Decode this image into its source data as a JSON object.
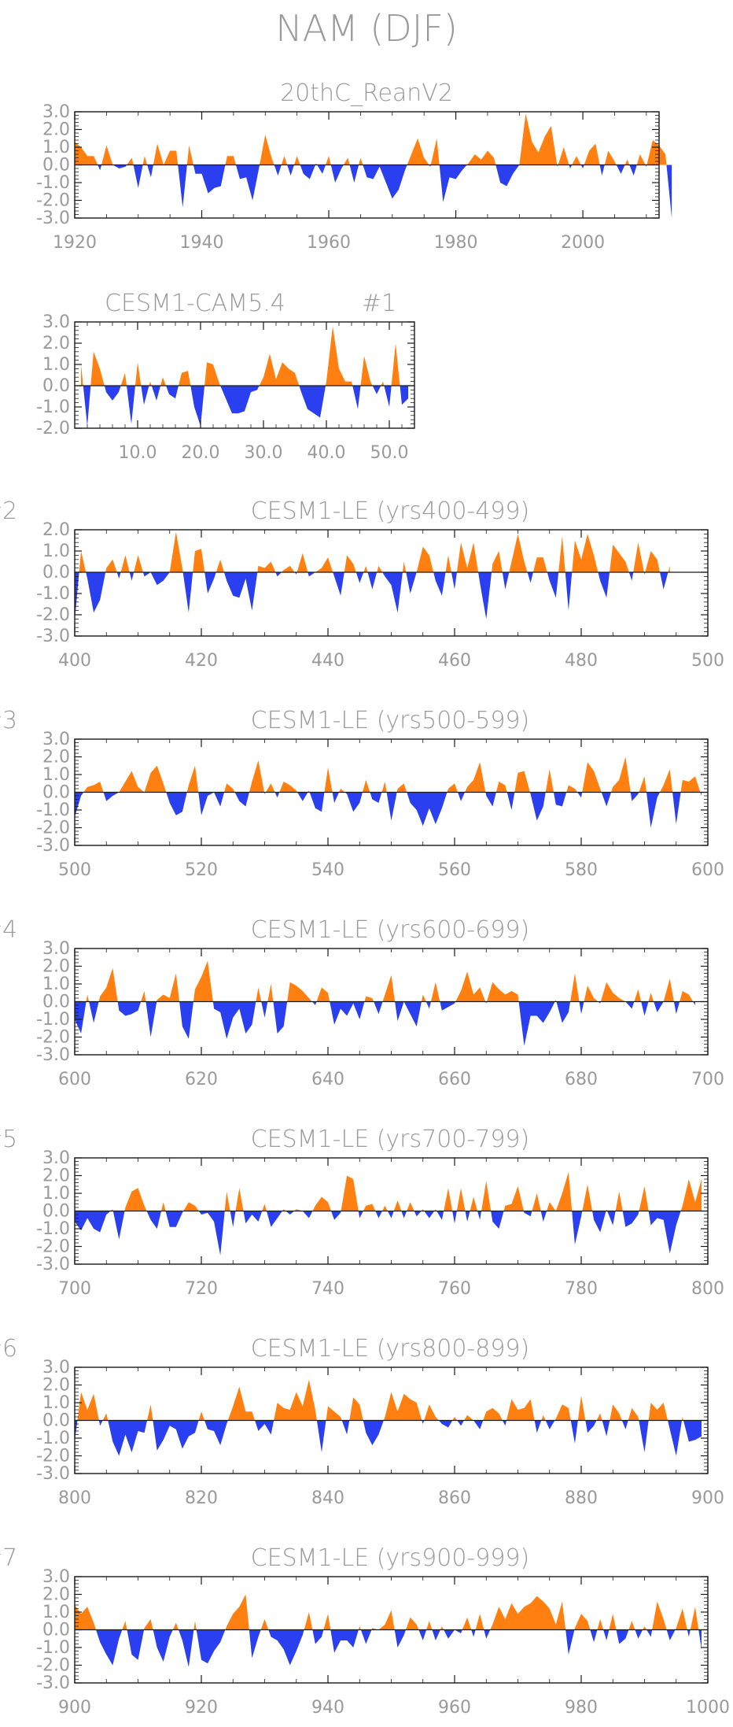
{
  "figure": {
    "title": "NAM (DJF)",
    "pos_color": "#FF8010",
    "neg_color": "#2A3FEF",
    "axis_color": "#1a1a1a",
    "text_color": "#9a9a9a"
  },
  "chart_data": [
    {
      "type": "area",
      "title": "20thC_ReanV2",
      "xlim": [
        1920,
        2012
      ],
      "ylim": [
        -3.0,
        3.0
      ],
      "xticks": [
        "1920",
        "1940",
        "1960",
        "1980",
        "2000"
      ],
      "yticks": [
        "3.0",
        "2.0",
        "1.0",
        "0.0",
        "-1.0",
        "-2.0",
        "-3.0"
      ],
      "x_start": 1920,
      "values": [
        1.3,
        1.0,
        0.5,
        0.5,
        -0.3,
        1.1,
        0.0,
        -0.2,
        -0.1,
        0.4,
        -1.3,
        0.5,
        -0.7,
        1.2,
        0.0,
        0.8,
        0.8,
        -2.4,
        1.1,
        -0.5,
        -0.5,
        -1.6,
        -1.3,
        -1.2,
        0.5,
        0.5,
        -0.8,
        -0.7,
        -2.0,
        -0.2,
        1.7,
        0.4,
        -0.6,
        0.5,
        -0.6,
        0.5,
        -0.5,
        -0.8,
        0.1,
        -0.5,
        0.5,
        -1.0,
        -0.2,
        0.4,
        -1.0,
        0.4,
        -0.7,
        -0.8,
        -0.1,
        -1.0,
        -1.9,
        -1.4,
        -0.3,
        0.6,
        1.5,
        0.4,
        -0.1,
        1.5,
        -2.1,
        -0.7,
        -0.8,
        -0.3,
        0.1,
        0.6,
        0.3,
        0.8,
        0.4,
        -1.0,
        -1.2,
        -0.5,
        0.0,
        2.9,
        1.3,
        0.7,
        1.6,
        2.2,
        -0.1,
        1.0,
        -0.2,
        0.5,
        -0.2,
        0.8,
        1.2,
        -0.6,
        0.8,
        0.2,
        -0.5,
        0.3,
        -0.6,
        0.6,
        -0.1,
        1.4,
        1.1,
        0.6,
        -3.0
      ]
    },
    {
      "type": "area",
      "title": "CESM1-CAM5.4",
      "label": "#1",
      "xlim": [
        0,
        54
      ],
      "ylim": [
        -2.0,
        3.0
      ],
      "xticks": [
        "10.0",
        "20.0",
        "30.0",
        "40.0",
        "50.0"
      ],
      "yticks": [
        "3.0",
        "2.0",
        "1.0",
        "0.0",
        "-1.0",
        "-2.0"
      ],
      "x_start": 1,
      "values": [
        1.0,
        -1.9,
        1.6,
        0.8,
        -0.3,
        -0.7,
        -0.3,
        0.6,
        -1.8,
        1.1,
        -0.9,
        0.2,
        -0.7,
        0.4,
        -0.4,
        -0.6,
        0.6,
        0.7,
        -1.0,
        -1.9,
        1.1,
        1.0,
        0.1,
        -0.6,
        -1.3,
        -1.3,
        -1.2,
        -0.3,
        -0.2,
        0.4,
        1.5,
        0.3,
        1.1,
        0.8,
        0.6,
        -0.3,
        -1.1,
        -1.3,
        -1.5,
        0.2,
        2.8,
        0.8,
        0.2,
        0.2,
        -1.1,
        1.4,
        0.2,
        -0.4,
        0.2,
        -1.0,
        2.0,
        -0.9,
        -0.6
      ]
    },
    {
      "type": "area",
      "title": "CESM1-LE (yrs400-499)",
      "label": "#2",
      "xlim": [
        400,
        500
      ],
      "ylim": [
        -3.0,
        2.0
      ],
      "xticks": [
        "400",
        "420",
        "440",
        "460",
        "480",
        "500"
      ],
      "yticks": [
        "2.0",
        "1.0",
        "0.0",
        "-1.0",
        "-2.0",
        "-3.0"
      ],
      "x_start": 400,
      "values": [
        -2.3,
        1.0,
        -0.3,
        -1.9,
        -1.3,
        0.2,
        0.6,
        -0.3,
        0.8,
        -0.4,
        0.8,
        -0.2,
        0.0,
        -0.6,
        -0.4,
        0.0,
        1.9,
        0.2,
        -1.9,
        1.0,
        1.1,
        -1.0,
        -0.3,
        0.6,
        -0.4,
        -1.1,
        -1.2,
        -0.3,
        -1.8,
        0.3,
        0.2,
        0.5,
        -0.2,
        0.1,
        0.3,
        -0.1,
        0.9,
        -0.2,
        0.0,
        0.2,
        0.7,
        -0.2,
        -1.1,
        0.8,
        0.4,
        -0.5,
        0.3,
        -0.8,
        0.3,
        -0.2,
        -0.6,
        -1.9,
        0.5,
        -1.0,
        0.0,
        1.2,
        0.8,
        -0.4,
        -1.1,
        0.8,
        -0.8,
        1.4,
        0.2,
        1.4,
        -0.5,
        -2.2,
        0.4,
        1.0,
        -0.8,
        0.5,
        1.8,
        0.5,
        -0.5,
        0.7,
        0.7,
        -0.4,
        -1.2,
        1.7,
        -1.8,
        1.5,
        0.6,
        1.8,
        0.8,
        -0.4,
        -1.2,
        1.3,
        0.9,
        0.5,
        -0.4,
        1.4,
        -0.1,
        1.0,
        0.6,
        -0.8,
        0.3
      ]
    },
    {
      "type": "area",
      "title": "CESM1-LE (yrs500-599)",
      "label": "#3",
      "xlim": [
        500,
        600
      ],
      "ylim": [
        -3.0,
        3.0
      ],
      "xticks": [
        "500",
        "520",
        "540",
        "560",
        "580",
        "600"
      ],
      "yticks": [
        "3.0",
        "2.0",
        "1.0",
        "0.0",
        "-1.0",
        "-2.0",
        "-3.0"
      ],
      "x_start": 500,
      "values": [
        -1.4,
        -0.2,
        0.3,
        0.4,
        0.6,
        -0.5,
        -0.2,
        0.0,
        0.6,
        1.2,
        0.3,
        0.0,
        1.1,
        1.5,
        0.5,
        -0.6,
        -1.3,
        -1.1,
        0.4,
        1.5,
        -1.3,
        -0.2,
        0.0,
        -0.8,
        0.5,
        0.2,
        -0.5,
        -0.8,
        0.6,
        1.8,
        -0.1,
        0.5,
        -0.3,
        0.6,
        0.4,
        0.1,
        -0.5,
        0.1,
        -0.9,
        -1.1,
        1.4,
        -0.6,
        0.2,
        -0.1,
        -1.1,
        -0.6,
        0.7,
        -0.4,
        -0.6,
        0.6,
        -1.6,
        0.2,
        0.5,
        -0.6,
        -1.0,
        -1.9,
        -0.9,
        -1.8,
        -0.9,
        0.2,
        0.5,
        -0.5,
        0.3,
        0.7,
        1.7,
        -0.2,
        -0.8,
        0.6,
        0.4,
        -1.0,
        1.1,
        1.2,
        -0.1,
        -1.6,
        -0.8,
        1.3,
        -0.7,
        -0.8,
        0.4,
        0.2,
        -0.3,
        1.7,
        1.2,
        0.2,
        -0.8,
        0.3,
        0.7,
        2.0,
        -0.5,
        -0.1,
        0.9,
        -2.0,
        -0.3,
        0.4,
        1.3,
        -1.8,
        0.7,
        0.6,
        0.9,
        -0.2
      ]
    },
    {
      "type": "area",
      "title": "CESM1-LE (yrs600-699)",
      "label": "#4",
      "xlim": [
        600,
        700
      ],
      "ylim": [
        -3.0,
        3.0
      ],
      "xticks": [
        "600",
        "620",
        "640",
        "660",
        "680",
        "700"
      ],
      "yticks": [
        "3.0",
        "2.0",
        "1.0",
        "0.0",
        "-1.0",
        "-2.0",
        "-3.0"
      ],
      "x_start": 600,
      "values": [
        -1.0,
        -1.8,
        0.4,
        -1.2,
        0.3,
        0.8,
        1.9,
        -0.5,
        -0.8,
        -0.7,
        -0.5,
        0.6,
        -2.0,
        0.1,
        0.4,
        0.2,
        1.6,
        -1.4,
        -2.1,
        0.7,
        1.4,
        2.3,
        -0.4,
        -0.6,
        -2.1,
        -0.9,
        -0.4,
        -1.8,
        -1.3,
        0.8,
        -0.9,
        1.0,
        -1.8,
        -1.4,
        1.1,
        0.9,
        0.6,
        0.2,
        -0.2,
        0.8,
        0.5,
        -1.3,
        -0.4,
        -0.8,
        -0.1,
        -1.0,
        0.3,
        0.2,
        -0.7,
        0.4,
        1.5,
        -1.1,
        0.0,
        -0.7,
        -1.4,
        0.4,
        -0.4,
        1.1,
        -0.5,
        -0.3,
        -0.1,
        0.6,
        1.7,
        0.4,
        0.8,
        -0.1,
        1.1,
        0.7,
        0.4,
        0.6,
        0.4,
        -2.5,
        -0.8,
        -0.8,
        -1.2,
        -0.6,
        0.1,
        -1.2,
        -0.6,
        1.6,
        -0.7,
        0.9,
        0.2,
        -0.1,
        1.1,
        0.5,
        0.2,
        0.0,
        -0.4,
        0.7,
        -0.8,
        0.5,
        -0.6,
        0.0,
        1.3,
        -0.7,
        0.6,
        0.4,
        -0.2
      ]
    },
    {
      "type": "area",
      "title": "CESM1-LE (yrs700-799)",
      "label": "#5",
      "xlim": [
        700,
        800
      ],
      "ylim": [
        -3.0,
        3.0
      ],
      "xticks": [
        "700",
        "720",
        "740",
        "760",
        "780",
        "800"
      ],
      "yticks": [
        "3.0",
        "2.0",
        "1.0",
        "0.0",
        "-1.0",
        "-2.0",
        "-3.0"
      ],
      "x_start": 700,
      "values": [
        -0.6,
        -1.1,
        -0.4,
        -1.0,
        -1.2,
        -0.2,
        0.1,
        -1.6,
        0.2,
        1.1,
        1.3,
        0.3,
        -0.5,
        -1.0,
        0.5,
        -0.9,
        -0.9,
        -0.1,
        0.5,
        0.3,
        -0.2,
        -0.1,
        -0.6,
        -2.5,
        1.1,
        -0.9,
        1.3,
        -0.7,
        -0.2,
        -0.6,
        0.4,
        -0.9,
        -0.4,
        0.1,
        -0.2,
        0.1,
        0.0,
        -0.4,
        0.3,
        0.8,
        0.5,
        -0.5,
        -0.1,
        2.0,
        1.8,
        -0.4,
        0.3,
        0.4,
        -0.4,
        0.3,
        -0.4,
        0.6,
        -0.4,
        0.5,
        -0.3,
        0.1,
        -0.4,
        0.1,
        -0.5,
        1.3,
        -0.7,
        1.3,
        -0.6,
        0.8,
        -0.5,
        1.7,
        -0.6,
        -1.0,
        0.3,
        0.4,
        1.4,
        -0.1,
        -0.3,
        1.0,
        -0.6,
        0.5,
        0.0,
        1.0,
        2.2,
        -1.9,
        -0.3,
        1.5,
        -0.5,
        -1.2,
        0.1,
        -0.8,
        1.1,
        -0.9,
        -0.7,
        -0.2,
        1.4,
        -0.8,
        -0.4,
        -0.5,
        -2.4,
        -0.8,
        0.3,
        1.8,
        0.5,
        1.8
      ]
    },
    {
      "type": "area",
      "title": "CESM1-LE (yrs800-899)",
      "label": "#6",
      "xlim": [
        800,
        900
      ],
      "ylim": [
        -3.0,
        3.0
      ],
      "xticks": [
        "800",
        "820",
        "840",
        "860",
        "880",
        "900"
      ],
      "yticks": [
        "3.0",
        "2.0",
        "1.0",
        "0.0",
        "-1.0",
        "-2.0",
        "-3.0"
      ],
      "x_start": 800,
      "values": [
        -1.2,
        1.6,
        0.6,
        1.5,
        -0.3,
        0.4,
        -1.2,
        -2.0,
        -0.8,
        -1.8,
        -0.6,
        -0.7,
        0.9,
        -1.7,
        -1.1,
        -0.3,
        -0.5,
        -1.6,
        -0.9,
        -0.7,
        0.5,
        -0.5,
        -0.6,
        -1.4,
        -0.2,
        0.8,
        1.9,
        0.5,
        0.5,
        -0.6,
        -0.2,
        -0.8,
        1.0,
        0.7,
        0.6,
        1.6,
        0.8,
        2.3,
        0.6,
        -1.8,
        0.8,
        0.5,
        0.2,
        -0.8,
        1.3,
        0.9,
        -0.7,
        -1.4,
        -0.8,
        0.2,
        1.6,
        0.5,
        1.5,
        1.2,
        1.0,
        -0.2,
        0.9,
        0.2,
        -0.2,
        -0.4,
        0.2,
        -0.3,
        0.3,
        0.0,
        -0.5,
        0.5,
        0.7,
        0.4,
        -0.3,
        1.2,
        0.6,
        0.7,
        1.2,
        -0.7,
        0.3,
        -0.5,
        0.1,
        0.9,
        0.7,
        -1.3,
        1.4,
        -0.7,
        -0.3,
        0.4,
        -0.9,
        0.9,
        0.4,
        -0.5,
        0.7,
        0.2,
        -1.8,
        1.0,
        0.6,
        1.0,
        -0.5,
        -2.0,
        0.2,
        -1.2,
        -1.1,
        -0.9
      ]
    },
    {
      "type": "area",
      "title": "CESM1-LE (yrs900-999)",
      "label": "#7",
      "xlim": [
        900,
        1000
      ],
      "ylim": [
        -3.0,
        3.0
      ],
      "xticks": [
        "900",
        "920",
        "940",
        "960",
        "980",
        "1000"
      ],
      "yticks": [
        "3.0",
        "2.0",
        "1.0",
        "0.0",
        "-1.0",
        "-2.0",
        "-3.0"
      ],
      "x_start": 900,
      "values": [
        1.4,
        0.9,
        1.3,
        0.4,
        -0.7,
        -1.4,
        -2.0,
        -0.5,
        0.5,
        -1.4,
        -1.7,
        0.1,
        0.6,
        -1.0,
        -1.8,
        -0.4,
        0.4,
        -0.6,
        -2.1,
        0.5,
        -1.7,
        -1.9,
        -1.2,
        -0.7,
        0.2,
        0.9,
        1.3,
        2.0,
        -1.6,
        -0.4,
        0.6,
        -0.4,
        -0.6,
        -1.1,
        -2.0,
        -1.2,
        -0.3,
        1.0,
        -0.8,
        -0.4,
        0.9,
        -1.3,
        -0.6,
        -0.6,
        -1.0,
        0.2,
        -0.8,
        0.1,
        0.0,
        0.3,
        1.1,
        -1.0,
        -0.3,
        0.7,
        0.3,
        -0.6,
        0.5,
        -0.6,
        0.2,
        -0.5,
        0.0,
        -0.2,
        0.7,
        -0.4,
        0.9,
        -0.5,
        0.3,
        1.3,
        0.6,
        1.5,
        0.9,
        1.3,
        1.5,
        1.9,
        1.6,
        1.2,
        0.3,
        1.6,
        -1.4,
        0.1,
        0.9,
        0.5,
        -0.7,
        0.6,
        -0.6,
        0.9,
        -0.8,
        -0.5,
        0.5,
        -0.5,
        0.2,
        -0.4,
        1.6,
        0.6,
        -0.6,
        0.1,
        1.2,
        -0.4,
        1.3,
        -1.1
      ]
    }
  ]
}
